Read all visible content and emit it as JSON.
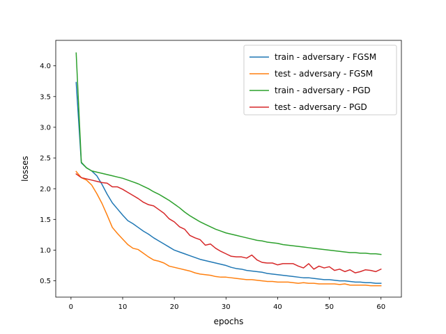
{
  "chart_data": {
    "type": "line",
    "title": "",
    "xlabel": "epochs",
    "ylabel": "losses",
    "xlim": [
      -2.95,
      63.95
    ],
    "ylim": [
      0.235,
      4.415
    ],
    "xticks": [
      0,
      10,
      20,
      30,
      40,
      50,
      60
    ],
    "yticks": [
      0.5,
      1.0,
      1.5,
      2.0,
      2.5,
      3.0,
      3.5,
      4.0
    ],
    "xtick_labels": [
      "0",
      "10",
      "20",
      "30",
      "40",
      "50",
      "60"
    ],
    "ytick_labels": [
      "0.5",
      "1.0",
      "1.5",
      "2.0",
      "2.5",
      "3.0",
      "3.5",
      "4.0"
    ],
    "grid": false,
    "legend_position": "top-right",
    "x": [
      1,
      2,
      3,
      4,
      5,
      6,
      7,
      8,
      9,
      10,
      11,
      12,
      13,
      14,
      15,
      16,
      17,
      18,
      19,
      20,
      21,
      22,
      23,
      24,
      25,
      26,
      27,
      28,
      29,
      30,
      31,
      32,
      33,
      34,
      35,
      36,
      37,
      38,
      39,
      40,
      41,
      42,
      43,
      44,
      45,
      46,
      47,
      48,
      49,
      50,
      51,
      52,
      53,
      54,
      55,
      56,
      57,
      58,
      59,
      60
    ],
    "series": [
      {
        "name": "train - adversary - FGSM",
        "color": "#1f77b4",
        "values": [
          3.73,
          2.42,
          2.34,
          2.29,
          2.21,
          2.07,
          1.91,
          1.77,
          1.67,
          1.57,
          1.48,
          1.43,
          1.37,
          1.31,
          1.26,
          1.2,
          1.15,
          1.1,
          1.05,
          1.0,
          0.97,
          0.94,
          0.91,
          0.88,
          0.85,
          0.83,
          0.81,
          0.79,
          0.77,
          0.75,
          0.72,
          0.7,
          0.69,
          0.67,
          0.66,
          0.65,
          0.64,
          0.62,
          0.61,
          0.6,
          0.59,
          0.58,
          0.57,
          0.56,
          0.55,
          0.55,
          0.54,
          0.53,
          0.52,
          0.52,
          0.51,
          0.5,
          0.5,
          0.49,
          0.48,
          0.48,
          0.47,
          0.47,
          0.46,
          0.46
        ]
      },
      {
        "name": "test - adversary - FGSM",
        "color": "#ff7f0e",
        "values": [
          2.28,
          2.18,
          2.14,
          2.06,
          1.92,
          1.76,
          1.57,
          1.37,
          1.27,
          1.18,
          1.09,
          1.03,
          1.01,
          0.95,
          0.89,
          0.84,
          0.82,
          0.79,
          0.74,
          0.72,
          0.7,
          0.68,
          0.66,
          0.63,
          0.61,
          0.6,
          0.59,
          0.57,
          0.56,
          0.56,
          0.55,
          0.54,
          0.53,
          0.52,
          0.52,
          0.51,
          0.5,
          0.49,
          0.49,
          0.48,
          0.48,
          0.48,
          0.47,
          0.46,
          0.47,
          0.46,
          0.46,
          0.45,
          0.45,
          0.45,
          0.45,
          0.44,
          0.45,
          0.43,
          0.43,
          0.43,
          0.43,
          0.42,
          0.42,
          0.42
        ]
      },
      {
        "name": "train - adversary - PGD",
        "color": "#2ca02c",
        "values": [
          4.21,
          2.43,
          2.34,
          2.29,
          2.27,
          2.25,
          2.23,
          2.21,
          2.19,
          2.17,
          2.14,
          2.11,
          2.08,
          2.04,
          2.0,
          1.95,
          1.91,
          1.86,
          1.81,
          1.75,
          1.69,
          1.62,
          1.56,
          1.51,
          1.46,
          1.42,
          1.38,
          1.34,
          1.31,
          1.28,
          1.26,
          1.24,
          1.22,
          1.2,
          1.18,
          1.16,
          1.15,
          1.13,
          1.12,
          1.11,
          1.09,
          1.08,
          1.07,
          1.06,
          1.05,
          1.04,
          1.03,
          1.02,
          1.01,
          1.0,
          0.99,
          0.98,
          0.97,
          0.96,
          0.96,
          0.95,
          0.95,
          0.94,
          0.94,
          0.93
        ]
      },
      {
        "name": "test - adversary - PGD",
        "color": "#d62728",
        "values": [
          2.24,
          2.18,
          2.16,
          2.14,
          2.12,
          2.1,
          2.09,
          2.03,
          2.03,
          1.99,
          1.94,
          1.89,
          1.84,
          1.78,
          1.74,
          1.72,
          1.66,
          1.6,
          1.51,
          1.46,
          1.38,
          1.34,
          1.24,
          1.2,
          1.17,
          1.08,
          1.1,
          1.03,
          0.98,
          0.94,
          0.9,
          0.89,
          0.89,
          0.87,
          0.92,
          0.84,
          0.8,
          0.79,
          0.79,
          0.76,
          0.78,
          0.78,
          0.78,
          0.74,
          0.71,
          0.78,
          0.69,
          0.74,
          0.71,
          0.73,
          0.67,
          0.69,
          0.65,
          0.68,
          0.63,
          0.65,
          0.68,
          0.67,
          0.65,
          0.69
        ]
      }
    ]
  }
}
